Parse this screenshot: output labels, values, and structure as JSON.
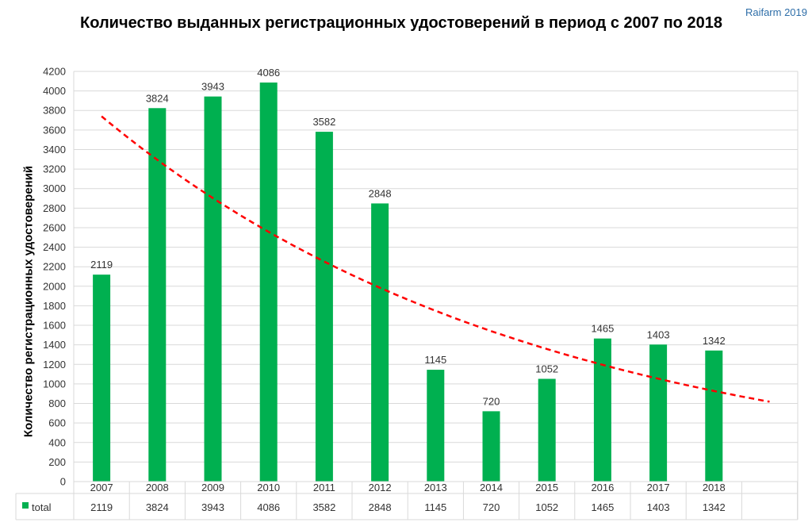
{
  "chart_data": {
    "type": "bar",
    "title": "Количество выданных регистрационных удостоверений в период с 2007 по 2018",
    "ylabel": "Количество регистрационных удостоверений",
    "watermark": "Raifarm 2019",
    "categories": [
      "2007",
      "2008",
      "2009",
      "2010",
      "2011",
      "2012",
      "2013",
      "2014",
      "2015",
      "2016",
      "2017",
      "2018"
    ],
    "series": [
      {
        "name": "total",
        "color": "#00b050",
        "values": [
          2119,
          3824,
          3943,
          4086,
          3582,
          2848,
          1145,
          720,
          1052,
          1465,
          1403,
          1342
        ]
      }
    ],
    "trendline": {
      "type": "exponential",
      "color": "#ff0000",
      "style": "dashed",
      "start": 3740,
      "rate": 0.881
    },
    "yticks": [
      0,
      200,
      400,
      600,
      800,
      1000,
      1200,
      1400,
      1600,
      1800,
      2000,
      2200,
      2400,
      2600,
      2800,
      3000,
      3200,
      3400,
      3600,
      3800,
      4000,
      4200
    ],
    "ylim": [
      0,
      4200
    ],
    "grid": true,
    "data_table": true
  }
}
